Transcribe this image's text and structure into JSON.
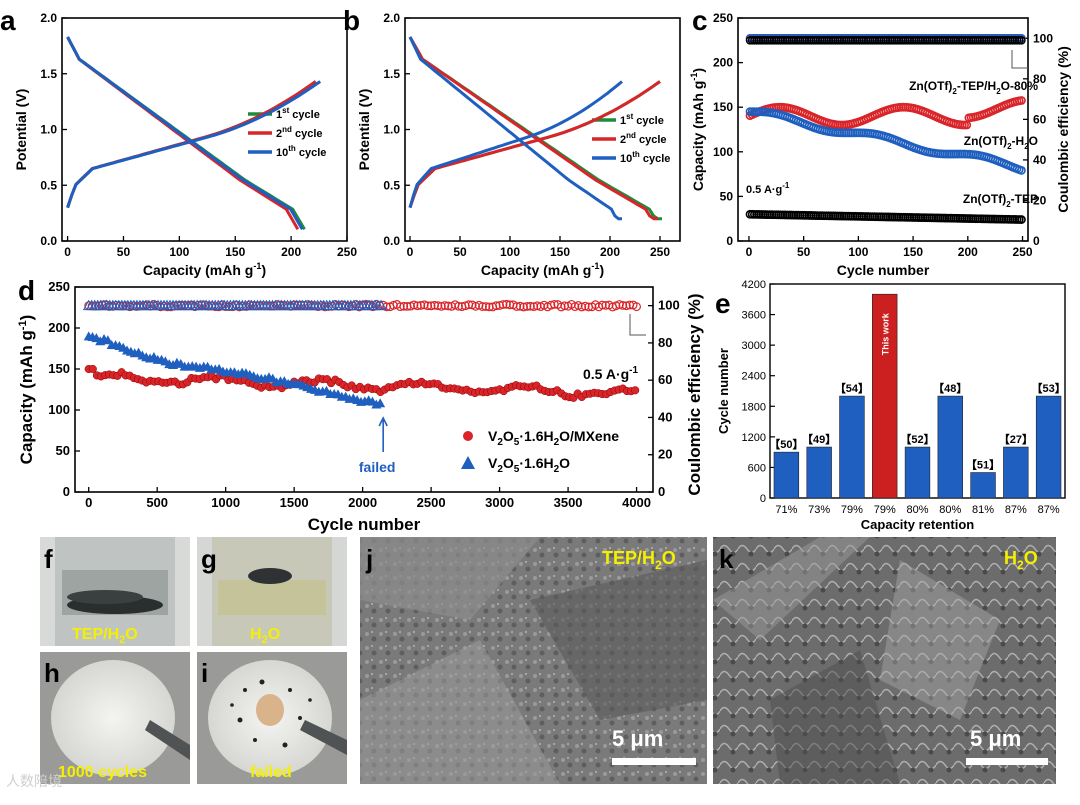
{
  "chart_data": [
    {
      "panel": "a",
      "type": "line",
      "xlabel": "Capacity (mAh g",
      "xlabel_sup": "-1",
      "xlabel_end": ")",
      "ylabel": "Potential (V)",
      "xlim": [
        -5,
        250
      ],
      "ylim": [
        0,
        2.0
      ],
      "xticks": [
        "0",
        "50",
        "100",
        "150",
        "200",
        "250"
      ],
      "yticks": [
        "0.0",
        "0.5",
        "1.0",
        "1.5",
        "2.0"
      ],
      "legend_placement": "center-right",
      "series": [
        {
          "name": "cycle",
          "ord": "1",
          "sup": "st",
          "color": "#1e8c3a",
          "charge_end": 222,
          "discharge_end": 212
        },
        {
          "name": "cycle",
          "ord": "2",
          "sup": "nd",
          "color": "#d9252a",
          "charge_end": 222,
          "discharge_end": 206
        },
        {
          "name": "cycle",
          "ord": "10",
          "sup": "th",
          "color": "#1f5fbf",
          "charge_end": 226,
          "discharge_end": 210
        }
      ]
    },
    {
      "panel": "b",
      "type": "line",
      "xlabel": "Capacity (mAh g",
      "xlabel_sup": "-1",
      "xlabel_end": ")",
      "ylabel": "Potential (V)",
      "xlim": [
        -5,
        270
      ],
      "ylim": [
        0,
        2.0
      ],
      "xticks": [
        "0",
        "50",
        "100",
        "150",
        "200",
        "250"
      ],
      "yticks": [
        "0.0",
        "0.5",
        "1.0",
        "1.5",
        "2.0"
      ],
      "legend_placement": "center-right",
      "series": [
        {
          "name": "cycle",
          "ord": "1",
          "sup": "st",
          "color": "#1e8c3a",
          "charge_end": 250,
          "discharge_end": 252
        },
        {
          "name": "cycle",
          "ord": "2",
          "sup": "nd",
          "color": "#d9252a",
          "charge_end": 250,
          "discharge_end": 248
        },
        {
          "name": "cycle",
          "ord": "10",
          "sup": "th",
          "color": "#1f5fbf",
          "charge_end": 212,
          "discharge_end": 212
        }
      ]
    },
    {
      "panel": "c",
      "type": "scatter",
      "xlabel": "Cycle number",
      "ylabel": "Capacity (mAh g",
      "ylabel_sup": "-1",
      "ylabel_end": ")",
      "y2label": "Coulombic efficiency (%)",
      "xlim": [
        -10,
        255
      ],
      "ylim": [
        0,
        250
      ],
      "y2lim": [
        0,
        110
      ],
      "xticks": [
        "0",
        "50",
        "100",
        "150",
        "200",
        "250"
      ],
      "yticks": [
        "0",
        "50",
        "100",
        "150",
        "200",
        "250"
      ],
      "y2ticks": [
        "0",
        "20",
        "40",
        "60",
        "80",
        "100"
      ],
      "annotation": "0.5 A·g",
      "annotation_sup": "-1",
      "series": [
        {
          "name": "Zn(OTf)2-TEP/H2O-80%",
          "color": "#d9252a",
          "capacity_start": 150,
          "capacity_end": 150,
          "ce": 100
        },
        {
          "name": "Zn(OTf)2-H2O",
          "color": "#1f5fbf",
          "capacity_start": 145,
          "capacity_end": 82,
          "ce": 100
        },
        {
          "name": "Zn(OTf)2-TEP",
          "color": "#000000",
          "capacity_start": 30,
          "capacity_end": 24,
          "ce": 99
        }
      ],
      "labels": [
        {
          "pre": "Zn(OTf)",
          "s1": "2",
          "mid": "-TEP/H",
          "s2": "2",
          "post": "O-80%"
        },
        {
          "pre": "Zn(OTf)",
          "s1": "2",
          "mid": "-H",
          "s2": "2",
          "post": "O"
        },
        {
          "pre": "Zn(OTf)",
          "s1": "2",
          "mid": "-TEP",
          "s2": "",
          "post": ""
        }
      ]
    },
    {
      "panel": "d",
      "type": "scatter",
      "xlabel": "Cycle number",
      "ylabel": "Capacity (mAh g",
      "ylabel_sup": "-1",
      "ylabel_end": ")",
      "y2label": "Coulombic efficiency (%)",
      "xlim": [
        -100,
        4120
      ],
      "ylim": [
        0,
        250
      ],
      "y2lim": [
        0,
        110
      ],
      "xticks": [
        "0",
        "500",
        "1000",
        "1500",
        "2000",
        "2500",
        "3000",
        "3500",
        "4000"
      ],
      "yticks": [
        "0",
        "50",
        "100",
        "150",
        "200",
        "250"
      ],
      "y2ticks": [
        "0",
        "20",
        "40",
        "60",
        "80",
        "100"
      ],
      "annotation": "0.5 A·g",
      "annotation_sup": "-1",
      "failed_label": "failed",
      "failed_cycle": 2150,
      "series": [
        {
          "name": "V2O5·1.6H2O/MXene",
          "color": "#d9252a",
          "marker": "circle",
          "capacity_start": 150,
          "capacity_end": 118,
          "cycles_end": 4000,
          "ce": 100
        },
        {
          "name": "V2O5·1.6H2O",
          "color": "#1f5fbf",
          "marker": "triangle",
          "capacity_start": 190,
          "capacity_end": 90,
          "cycles_end": 2150,
          "ce": 100
        }
      ],
      "legend": [
        {
          "p1": "V",
          "s1": "2",
          "p2": "O",
          "s2": "5",
          "p3": "·1.6H",
          "s3": "2",
          "p4": "O/MXene"
        },
        {
          "p1": "V",
          "s1": "2",
          "p2": "O",
          "s2": "5",
          "p3": "·1.6H",
          "s3": "2",
          "p4": "O"
        }
      ]
    },
    {
      "panel": "e",
      "type": "bar",
      "xlabel": "Capacity retention",
      "ylabel": "Cycle number",
      "ylim": [
        0,
        4200
      ],
      "yticks": [
        "0",
        "600",
        "1200",
        "1800",
        "2400",
        "3000",
        "3600",
        "4200"
      ],
      "categories": [
        "71%",
        "73%",
        "79%",
        "79%",
        "80%",
        "80%",
        "81%",
        "87%",
        "87%"
      ],
      "values": [
        900,
        1000,
        2000,
        4000,
        1000,
        2000,
        500,
        1000,
        2000
      ],
      "refs": [
        "【50】",
        "【49】",
        "【54】",
        "This work",
        "【52】",
        "【48】",
        "【51】",
        "【27】",
        "【53】"
      ],
      "colors": [
        "#1f5fbf",
        "#1f5fbf",
        "#1f5fbf",
        "#cc1f1f",
        "#1f5fbf",
        "#1f5fbf",
        "#1f5fbf",
        "#1f5fbf",
        "#1f5fbf"
      ]
    }
  ],
  "photos": {
    "f": {
      "letter": "f",
      "label": "TEP/H2O",
      "l1": "TEP/H",
      "s": "2",
      "l2": "O"
    },
    "g": {
      "letter": "g",
      "label": "H2O",
      "l1": "H",
      "s": "2",
      "l2": "O"
    },
    "h": {
      "letter": "h",
      "label": "1000 cycles"
    },
    "i": {
      "letter": "i",
      "label": "failed"
    },
    "j": {
      "letter": "j",
      "l1": "TEP/H",
      "s": "2",
      "l2": "O",
      "scale": "5 μm"
    },
    "k": {
      "letter": "k",
      "l1": "H",
      "s": "2",
      "l2": "O",
      "scale": "5 μm"
    }
  },
  "panel_letters": [
    "a",
    "b",
    "c",
    "d",
    "e"
  ],
  "watermark": "人数陪境"
}
